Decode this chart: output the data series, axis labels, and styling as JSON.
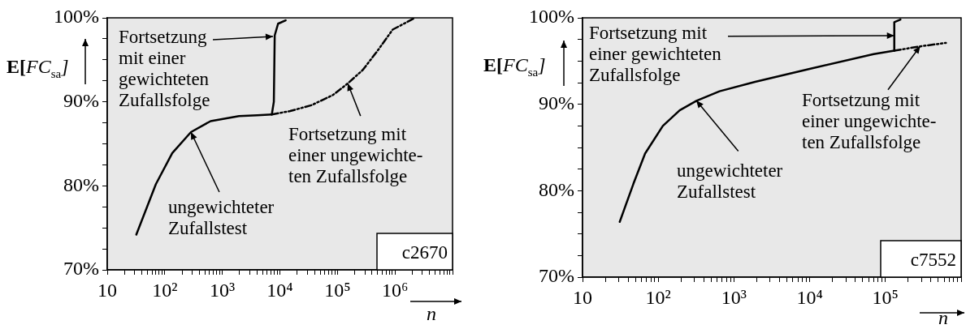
{
  "chart_data": [
    {
      "type": "line",
      "log": "x",
      "xlabel": "n",
      "ylabel": "E[FC$_{sa}$]",
      "xlim": [
        10,
        10000000
      ],
      "xticks": [
        {
          "value": 10,
          "label": "10"
        },
        {
          "value": 20,
          "label": null
        },
        {
          "value": 30,
          "label": null
        },
        {
          "value": 40,
          "label": null
        },
        {
          "value": 50,
          "label": null
        },
        {
          "value": 60,
          "label": null
        },
        {
          "value": 70,
          "label": null
        },
        {
          "value": 80,
          "label": null
        },
        {
          "value": 90,
          "label": null
        },
        {
          "value": 100,
          "label": "10²"
        },
        {
          "value": 200,
          "label": null
        },
        {
          "value": 300,
          "label": null
        },
        {
          "value": 400,
          "label": null
        },
        {
          "value": 500,
          "label": null
        },
        {
          "value": 600,
          "label": null
        },
        {
          "value": 700,
          "label": null
        },
        {
          "value": 800,
          "label": null
        },
        {
          "value": 900,
          "label": null
        },
        {
          "value": 1000,
          "label": "10³"
        },
        {
          "value": 2000,
          "label": null
        },
        {
          "value": 3000,
          "label": null
        },
        {
          "value": 4000,
          "label": null
        },
        {
          "value": 5000,
          "label": null
        },
        {
          "value": 6000,
          "label": null
        },
        {
          "value": 7000,
          "label": null
        },
        {
          "value": 8000,
          "label": null
        },
        {
          "value": 9000,
          "label": null
        },
        {
          "value": 10000,
          "label": "10⁴"
        },
        {
          "value": 20000,
          "label": null
        },
        {
          "value": 30000,
          "label": null
        },
        {
          "value": 40000,
          "label": null
        },
        {
          "value": 50000,
          "label": null
        },
        {
          "value": 60000,
          "label": null
        },
        {
          "value": 70000,
          "label": null
        },
        {
          "value": 80000,
          "label": null
        },
        {
          "value": 90000,
          "label": null
        },
        {
          "value": 100000,
          "label": "10⁵"
        },
        {
          "value": 200000,
          "label": null
        },
        {
          "value": 300000,
          "label": null
        },
        {
          "value": 400000,
          "label": null
        },
        {
          "value": 500000,
          "label": null
        },
        {
          "value": 600000,
          "label": null
        },
        {
          "value": 700000,
          "label": null
        },
        {
          "value": 800000,
          "label": null
        },
        {
          "value": 900000,
          "label": null
        },
        {
          "value": 1000000,
          "label": "10⁶"
        },
        {
          "value": 2000000,
          "label": null
        },
        {
          "value": 3000000,
          "label": null
        },
        {
          "value": 4000000,
          "label": null
        },
        {
          "value": 5000000,
          "label": null
        },
        {
          "value": 6000000,
          "label": null
        },
        {
          "value": 7000000,
          "label": null
        },
        {
          "value": 8000000,
          "label": null
        },
        {
          "value": 9000000,
          "label": null
        },
        {
          "value": 10000000,
          "label": null
        }
      ],
      "ylim": [
        70,
        100
      ],
      "yticks": [
        {
          "value": 70,
          "label": "70%"
        },
        {
          "value": 72.5,
          "label": null
        },
        {
          "value": 75,
          "label": null
        },
        {
          "value": 77.5,
          "label": null
        },
        {
          "value": 80,
          "label": "80%"
        },
        {
          "value": 82.5,
          "label": null
        },
        {
          "value": 85,
          "label": null
        },
        {
          "value": 87.5,
          "label": null
        },
        {
          "value": 90,
          "label": "90%"
        },
        {
          "value": 92.5,
          "label": null
        },
        {
          "value": 95,
          "label": null
        },
        {
          "value": 97.5,
          "label": null
        },
        {
          "value": 100,
          "label": "100%"
        }
      ],
      "series": [
        {
          "color": "#000000",
          "line_style": "solid",
          "x": [
            32,
            70,
            135,
            285,
            625,
            1950,
            4070,
            7240
          ],
          "values": [
            74.2,
            80.2,
            83.9,
            86.4,
            87.7,
            88.3,
            88.4,
            88.5
          ]
        },
        {
          "color": "#000000",
          "line_style": "solid",
          "x": [
            7240,
            7850,
            8130,
            9300,
            12600
          ],
          "values": [
            88.5,
            90,
            97.9,
            99.3,
            99.7
          ]
        },
        {
          "color": "#000000",
          "line_style": "dashed",
          "x": [
            7240,
            15100,
            35400,
            83000,
            152000,
            276000,
            500000,
            912000,
            2100000
          ],
          "values": [
            88.5,
            88.9,
            89.6,
            90.8,
            92.2,
            93.8,
            96.1,
            98.6,
            99.9
          ]
        }
      ],
      "annotations": [
        "Fortsetzung\nmit einer\ngewichteten\nZufallsfolge",
        {
          "text": "Fortsetzung mit\neiner ungewichte-\nten Zufallsfolge",
          "x": 152000,
          "y": 92.2
        },
        {
          "text": "ungewichteter\nZufallstest",
          "x": 285,
          "y": 86.4
        },
        "c2670"
      ]
    },
    {
      "type": "line",
      "log": "x",
      "xlabel": "n",
      "ylabel": "E[FC$_{sa}$]",
      "xlim": [
        10,
        1000000
      ],
      "xticks": [
        {
          "value": 10,
          "label": "10"
        },
        {
          "value": 20,
          "label": null
        },
        {
          "value": 30,
          "label": null
        },
        {
          "value": 40,
          "label": null
        },
        {
          "value": 50,
          "label": null
        },
        {
          "value": 60,
          "label": null
        },
        {
          "value": 70,
          "label": null
        },
        {
          "value": 80,
          "label": null
        },
        {
          "value": 90,
          "label": null
        },
        {
          "value": 100,
          "label": "10²"
        },
        {
          "value": 200,
          "label": null
        },
        {
          "value": 300,
          "label": null
        },
        {
          "value": 400,
          "label": null
        },
        {
          "value": 500,
          "label": null
        },
        {
          "value": 600,
          "label": null
        },
        {
          "value": 700,
          "label": null
        },
        {
          "value": 800,
          "label": null
        },
        {
          "value": 900,
          "label": null
        },
        {
          "value": 1000,
          "label": "10³"
        },
        {
          "value": 2000,
          "label": null
        },
        {
          "value": 3000,
          "label": null
        },
        {
          "value": 4000,
          "label": null
        },
        {
          "value": 5000,
          "label": null
        },
        {
          "value": 6000,
          "label": null
        },
        {
          "value": 7000,
          "label": null
        },
        {
          "value": 8000,
          "label": null
        },
        {
          "value": 9000,
          "label": null
        },
        {
          "value": 10000,
          "label": "10⁴"
        },
        {
          "value": 20000,
          "label": null
        },
        {
          "value": 30000,
          "label": null
        },
        {
          "value": 40000,
          "label": null
        },
        {
          "value": 50000,
          "label": null
        },
        {
          "value": 60000,
          "label": null
        },
        {
          "value": 70000,
          "label": null
        },
        {
          "value": 80000,
          "label": null
        },
        {
          "value": 90000,
          "label": null
        },
        {
          "value": 100000,
          "label": "10⁵"
        },
        {
          "value": 200000,
          "label": null
        },
        {
          "value": 300000,
          "label": null
        },
        {
          "value": 400000,
          "label": null
        },
        {
          "value": 500000,
          "label": null
        },
        {
          "value": 600000,
          "label": null
        },
        {
          "value": 700000,
          "label": null
        },
        {
          "value": 800000,
          "label": null
        },
        {
          "value": 900000,
          "label": null
        },
        {
          "value": 1000000,
          "label": null
        }
      ],
      "ylim": [
        70,
        100
      ],
      "yticks": [
        {
          "value": 70,
          "label": "70%"
        },
        {
          "value": 72.5,
          "label": null
        },
        {
          "value": 75,
          "label": null
        },
        {
          "value": 77.5,
          "label": null
        },
        {
          "value": 80,
          "label": "80%"
        },
        {
          "value": 82.5,
          "label": null
        },
        {
          "value": 85,
          "label": null
        },
        {
          "value": 87.5,
          "label": null
        },
        {
          "value": 90,
          "label": "90%"
        },
        {
          "value": 92.5,
          "label": null
        },
        {
          "value": 95,
          "label": null
        },
        {
          "value": 97.5,
          "label": null
        },
        {
          "value": 100,
          "label": "100%"
        }
      ],
      "series": [
        {
          "color": "#000000",
          "line_style": "solid",
          "x": [
            31,
            47,
            67,
            115,
            192,
            320,
            645,
            1900,
            10000,
            70000,
            131000
          ],
          "values": [
            76.4,
            80.8,
            84.3,
            87.5,
            89.3,
            90.4,
            91.5,
            92.6,
            94.1,
            95.8,
            96.2
          ]
        },
        {
          "color": "#000000",
          "line_style": "solid",
          "x": [
            131000,
            131000,
            158000
          ],
          "values": [
            96.2,
            99.5,
            99.8
          ]
        },
        {
          "color": "#000000",
          "line_style": "dashed",
          "x": [
            131000,
            288000,
            630000
          ],
          "values": [
            96.2,
            96.7,
            97.1
          ]
        }
      ],
      "annotations": [
        {
          "text": "Fortsetzung mit\neiner gewichteten\nZufallsfolge",
          "x": 131000,
          "y": 98.1
        },
        {
          "text": "Fortsetzung mit\neiner ungewichte-\nten Zufallsfolge",
          "x": 288000,
          "y": 96.7
        },
        {
          "text": "ungewichteter\nZufallstest",
          "x": 320,
          "y": 90.4
        },
        "c7552"
      ]
    }
  ]
}
